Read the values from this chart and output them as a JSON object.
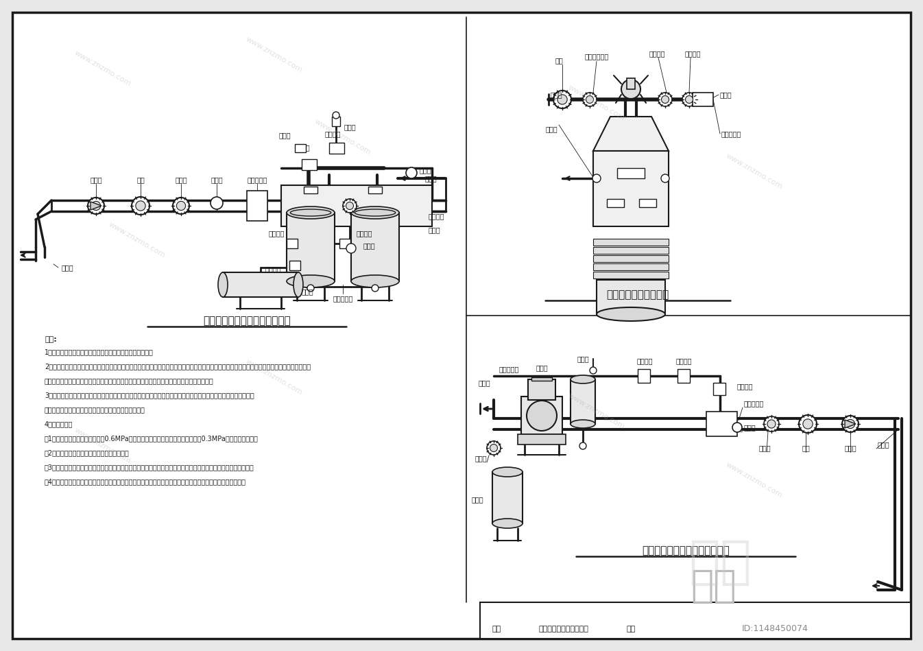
{
  "bg_color": "#e8e8e8",
  "paper_color": "#ffffff",
  "line_color": "#1a1a1a",
  "title_left": "地表水微灌首部枢纽装置结构图",
  "title_right_top": "压差式施肥装置结构图",
  "title_right_bottom": "地下水微灌首部枢纽装置结构图",
  "footer_label1": "图纸",
  "footer_label2": "微灌首部枢纽装置结构图",
  "footer_label3": "图号",
  "watermark": "www.znzmo.com",
  "id_text": "1148450074",
  "zhi_mo": "知末",
  "description_title": "说明:",
  "description_lines": [
    "1、主要用途：主要用于田间、果园及温室大棚的液液施肥。",
    "2、施肥原理：本装置是由施肥专用阀、施肥罐及连接管组成，是根据压差的原理进行施肥的。首先将稀释过的无机肥料注入罐内，开启进水阀，使之",
    "形成一定的压力差，开启施肥专用阀的两个调节阀，将罐体内的肥料压入灌溉系统中进行施肥。",
    "3、主要特点：该装置操作简便，施肥均匀，可使肥料直接作用于作物根部，提高肥效，减少浪费，省时、省力。定量",
    "施肥装置适用于微灌工程，喷灌施肥只限于喷洒叶面肥。",
    "4、注意事项：",
    "（1）首部施肥的肥料罐应能承受0.6MPa以上的使用压力，罐内的肥料罐应能承受0.3MPa以上的使用压力；",
    "（2）使用时应经常启闭施肥阀两侧的调节阀；",
    "（3）每次施完肥后应将两个调节阀关闭，并将罐体中洗干净，不得将肥料留在罐内，以免造成腐蚀，影响使用寿命；",
    "（4）在施肥装置后应再加装一级带网过滤器，以免将未完全溶解的肥料和杂质等入系统，造成灌溉设施的堵塞。"
  ]
}
